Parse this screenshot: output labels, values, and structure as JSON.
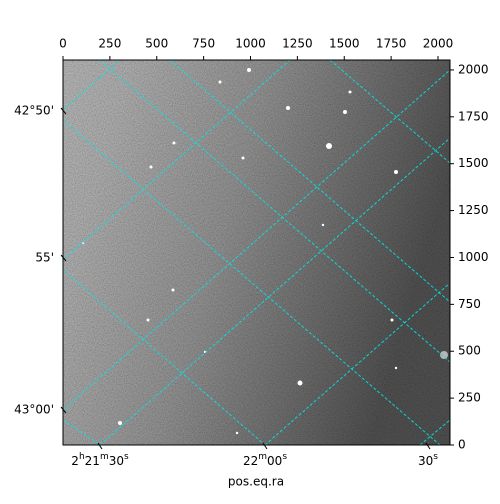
{
  "chart_data": {
    "type": "image",
    "x_label": "pos.eq.ra",
    "xlim": [
      0,
      2064
    ],
    "xticks": [
      0,
      250,
      500,
      750,
      1000,
      1250,
      1500,
      1750,
      2000
    ],
    "ylim": [
      0,
      2053
    ],
    "yticks": [
      0,
      250,
      500,
      750,
      1000,
      1250,
      1500,
      1750,
      2000
    ],
    "dec_labels": [
      "42°50'",
      "55'",
      "43°00'"
    ],
    "ra_labels": [
      "2h21m30s",
      "22m00s",
      "30s"
    ]
  }
}
